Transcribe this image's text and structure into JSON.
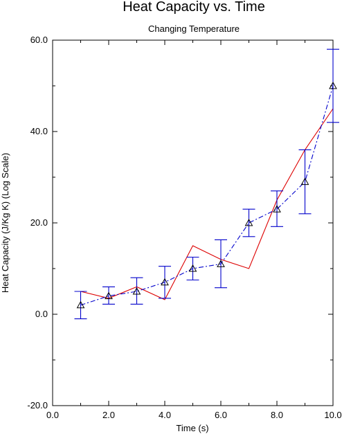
{
  "chart_data": {
    "type": "line",
    "title": "Heat Capacity vs. Time",
    "subtitle": "Changing Temperature",
    "xlabel": "Time (s)",
    "ylabel": "Heat Capacity (J/Kg K) (Log Scale)",
    "xlim": [
      0,
      10
    ],
    "ylim": [
      -20,
      60
    ],
    "x_ticks": [
      "0.0",
      "2.0",
      "4.0",
      "6.0",
      "8.0",
      "10.0"
    ],
    "y_ticks": [
      "-20.0",
      "0.0",
      "20.0",
      "40.0",
      "60.0"
    ],
    "grid": false,
    "series": [
      {
        "style": "solid",
        "color": "#dd0000",
        "x": [
          1,
          2,
          3,
          4,
          5,
          6,
          7,
          8,
          9,
          10
        ],
        "values": [
          5,
          3.5,
          6,
          3.2,
          15,
          12,
          10,
          25,
          36,
          45
        ]
      },
      {
        "style": "dash-dot",
        "color": "#0000cc",
        "marker": "triangle",
        "x": [
          1,
          2,
          3,
          4,
          5,
          6,
          7,
          8,
          9,
          10
        ],
        "values": [
          2,
          4,
          5,
          7,
          10,
          11,
          20,
          23,
          29,
          50
        ],
        "error_low": [
          -1,
          2.2,
          2.2,
          3.5,
          7.5,
          5.8,
          17,
          19.2,
          22,
          42
        ],
        "error_high": [
          5,
          6,
          8,
          10.5,
          12.5,
          16.3,
          23,
          27,
          36,
          58
        ]
      }
    ]
  }
}
